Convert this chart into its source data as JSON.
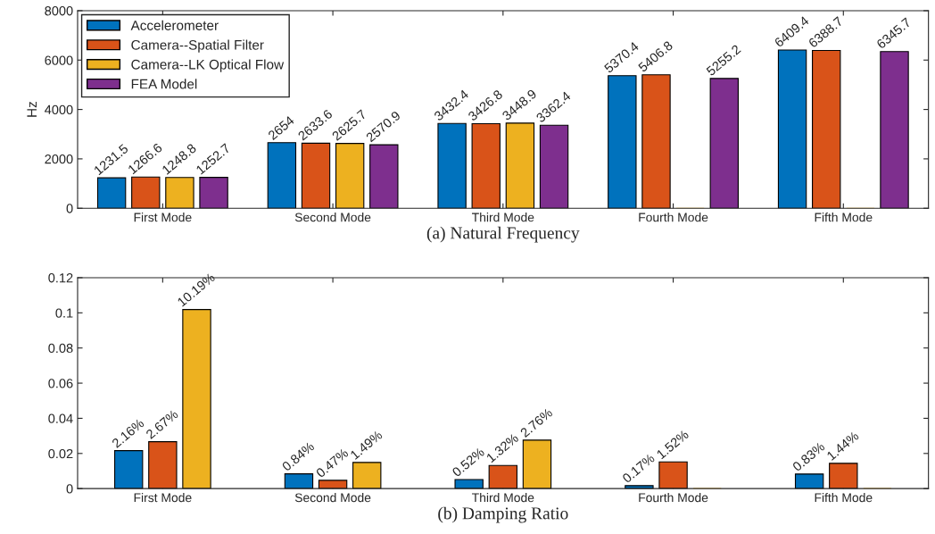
{
  "chart_data": [
    {
      "type": "bar",
      "xlabel": "(a) Natural Frequency",
      "ylabel": "Hz",
      "categories": [
        "First Mode",
        "Second Mode",
        "Third Mode",
        "Fourth Mode",
        "Fifth Mode"
      ],
      "ylim": [
        0,
        8000
      ],
      "yticks": [
        0,
        2000,
        4000,
        6000,
        8000
      ],
      "legend": "top left",
      "grid": false,
      "series": [
        {
          "name": "Accelerometer",
          "color": "#0072bd",
          "values": [
            1231.5,
            2654,
            3432.4,
            5370.4,
            6409.4
          ],
          "value_labels": [
            "1231.5",
            "2654",
            "3432.4",
            "5370.4",
            "6409.4"
          ]
        },
        {
          "name": "Camera--Spatial Filter",
          "color": "#d95319",
          "values": [
            1266.6,
            2633.6,
            3426.8,
            5406.8,
            6388.7
          ],
          "value_labels": [
            "1266.6",
            "2633.6",
            "3426.8",
            "5406.8",
            "6388.7"
          ]
        },
        {
          "name": "Camera--LK Optical Flow",
          "color": "#edb120",
          "values": [
            1248.8,
            2625.7,
            3448.9,
            0,
            0
          ],
          "value_labels": [
            "1248.8",
            "2625.7",
            "3448.9",
            null,
            null
          ]
        },
        {
          "name": "FEA Model",
          "color": "#7e2f8e",
          "values": [
            1252.7,
            2570.9,
            3362.4,
            5255.2,
            6345.7
          ],
          "value_labels": [
            "1252.7",
            "2570.9",
            "3362.4",
            "5255.2",
            "6345.7"
          ]
        }
      ]
    },
    {
      "type": "bar",
      "xlabel": "(b) Damping Ratio",
      "categories": [
        "First Mode",
        "Second Mode",
        "Third Mode",
        "Fourth Mode",
        "Fifth Mode"
      ],
      "ylim": [
        0,
        0.12
      ],
      "yticks": [
        0,
        0.02,
        0.04,
        0.06,
        0.08,
        0.1,
        0.12
      ],
      "grid": false,
      "series": [
        {
          "color": "#0072bd",
          "values": [
            0.0216,
            0.0084,
            0.0052,
            0.0017,
            0.0083
          ],
          "value_labels": [
            "2.16%",
            "0.84%",
            "0.52%",
            "0.17%",
            "0.83%"
          ]
        },
        {
          "color": "#d95319",
          "values": [
            0.0267,
            0.0047,
            0.0132,
            0.0152,
            0.0144
          ],
          "value_labels": [
            "2.67%",
            "0.47%",
            "1.32%",
            "1.52%",
            "1.44%"
          ]
        },
        {
          "color": "#edb120",
          "values": [
            0.1019,
            0.0149,
            0.0276,
            0,
            0
          ],
          "value_labels": [
            "10.19%",
            "1.49%",
            "2.76%",
            null,
            null
          ]
        }
      ]
    }
  ]
}
